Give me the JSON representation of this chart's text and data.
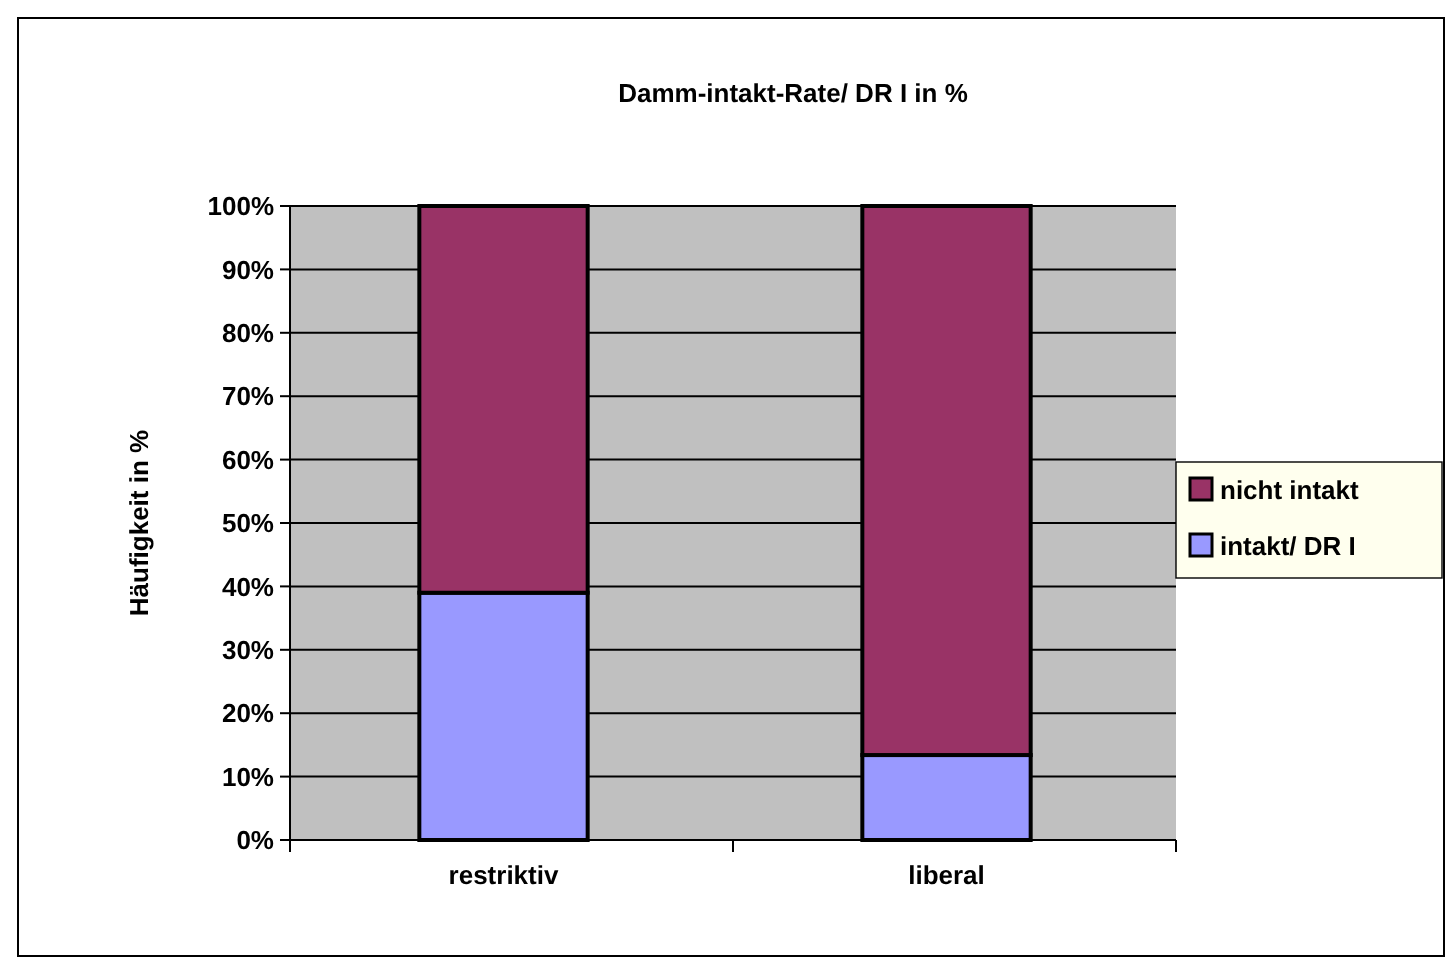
{
  "chart_data": {
    "type": "bar",
    "title": "Damm-intakt-Rate/ DR I in %",
    "ylabel": "Häufigkeit in %",
    "categories": [
      "restriktiv",
      "liberal"
    ],
    "stacked": true,
    "series": [
      {
        "name": "intakt/ DR I",
        "color": "#9999ff",
        "values": [
          39,
          13.4
        ]
      },
      {
        "name": "nicht intakt",
        "color": "#993366",
        "values": [
          61,
          86.6
        ]
      }
    ],
    "ylim": [
      0,
      100
    ],
    "yticks": [
      {
        "value": 0,
        "label": "0%"
      },
      {
        "value": 10,
        "label": "10%"
      },
      {
        "value": 20,
        "label": "20%"
      },
      {
        "value": 30,
        "label": "30%"
      },
      {
        "value": 40,
        "label": "40%"
      },
      {
        "value": 50,
        "label": "50%"
      },
      {
        "value": 60,
        "label": "60%"
      },
      {
        "value": 70,
        "label": "70%"
      },
      {
        "value": 80,
        "label": "80%"
      },
      {
        "value": 90,
        "label": "90%"
      },
      {
        "value": 100,
        "label": "100%"
      }
    ],
    "grid": "y",
    "legend": "right"
  }
}
